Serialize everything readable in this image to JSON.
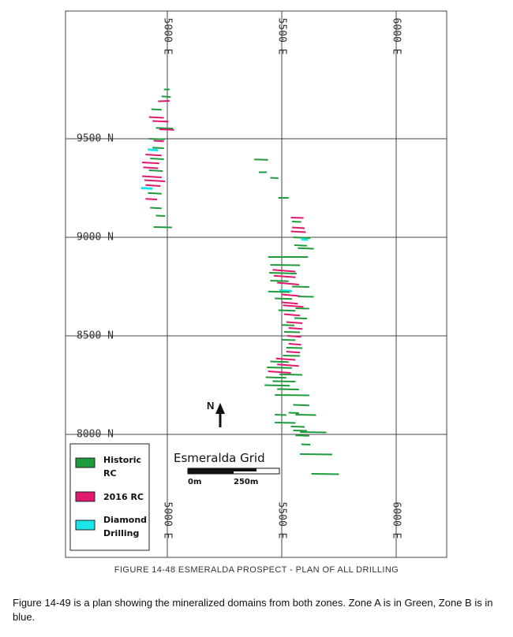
{
  "map": {
    "grid": {
      "eastings": [
        {
          "value": 5000,
          "label": "5000 E"
        },
        {
          "value": 5500,
          "label": "5500 E"
        },
        {
          "value": 6000,
          "label": "6000 E"
        }
      ],
      "northings": [
        {
          "value": 9500,
          "label": "9500 N"
        },
        {
          "value": 9000,
          "label": "9000 N"
        },
        {
          "value": 8500,
          "label": "8500 N"
        },
        {
          "value": 8000,
          "label": "8000 N"
        }
      ]
    },
    "grid_title": "Esmeralda Grid",
    "scale_bar": {
      "start_label": "0m",
      "end_label": "250m",
      "length_m": 250
    },
    "north_arrow": {
      "label": "N"
    },
    "legend": [
      {
        "key": "historic",
        "label_line1": "Historic",
        "label_line2": "RC",
        "color": "#1e9b3a"
      },
      {
        "key": "rc2016",
        "label_line1": "2016 RC",
        "label_line2": "",
        "color": "#e0186e"
      },
      {
        "key": "diamond",
        "label_line1": "Diamond",
        "label_line2": "Drilling",
        "color": "#18e6ea"
      }
    ],
    "colors": {
      "historic": "#1e9b3a",
      "rc2016": "#e0186e",
      "diamond": "#18e6ea",
      "grid_line": "#444444"
    },
    "drill_traces": [
      {
        "type": "historic",
        "e1": 4985,
        "n1": 9750,
        "e2": 5010,
        "n2": 9750
      },
      {
        "type": "historic",
        "e1": 4975,
        "n1": 9715,
        "e2": 5015,
        "n2": 9712
      },
      {
        "type": "rc2016",
        "e1": 4960,
        "n1": 9690,
        "e2": 5010,
        "n2": 9692
      },
      {
        "type": "historic",
        "e1": 4930,
        "n1": 9650,
        "e2": 4975,
        "n2": 9647
      },
      {
        "type": "rc2016",
        "e1": 4920,
        "n1": 9610,
        "e2": 4985,
        "n2": 9606
      },
      {
        "type": "rc2016",
        "e1": 4935,
        "n1": 9590,
        "e2": 5005,
        "n2": 9587
      },
      {
        "type": "historic",
        "e1": 4950,
        "n1": 9555,
        "e2": 5025,
        "n2": 9552
      },
      {
        "type": "rc2016",
        "e1": 4965,
        "n1": 9548,
        "e2": 5030,
        "n2": 9545
      },
      {
        "type": "historic",
        "e1": 4920,
        "n1": 9500,
        "e2": 4990,
        "n2": 9497
      },
      {
        "type": "rc2016",
        "e1": 4940,
        "n1": 9490,
        "e2": 4985,
        "n2": 9487
      },
      {
        "type": "historic",
        "e1": 4935,
        "n1": 9455,
        "e2": 4985,
        "n2": 9452
      },
      {
        "type": "diamond",
        "e1": 4915,
        "n1": 9445,
        "e2": 4960,
        "n2": 9442
      },
      {
        "type": "rc2016",
        "e1": 4905,
        "n1": 9420,
        "e2": 4975,
        "n2": 9415
      },
      {
        "type": "historic",
        "e1": 4925,
        "n1": 9400,
        "e2": 4985,
        "n2": 9396
      },
      {
        "type": "rc2016",
        "e1": 4890,
        "n1": 9380,
        "e2": 4965,
        "n2": 9375
      },
      {
        "type": "rc2016",
        "e1": 4895,
        "n1": 9355,
        "e2": 4960,
        "n2": 9350
      },
      {
        "type": "historic",
        "e1": 4920,
        "n1": 9340,
        "e2": 4980,
        "n2": 9336
      },
      {
        "type": "rc2016",
        "e1": 4890,
        "n1": 9310,
        "e2": 4975,
        "n2": 9304
      },
      {
        "type": "rc2016",
        "e1": 4900,
        "n1": 9290,
        "e2": 4990,
        "n2": 9284
      },
      {
        "type": "diamond",
        "e1": 4885,
        "n1": 9250,
        "e2": 4935,
        "n2": 9247
      },
      {
        "type": "rc2016",
        "e1": 4905,
        "n1": 9265,
        "e2": 4970,
        "n2": 9260
      },
      {
        "type": "historic",
        "e1": 4915,
        "n1": 9225,
        "e2": 4975,
        "n2": 9221
      },
      {
        "type": "rc2016",
        "e1": 4905,
        "n1": 9195,
        "e2": 4955,
        "n2": 9192
      },
      {
        "type": "historic",
        "e1": 4925,
        "n1": 9150,
        "e2": 4975,
        "n2": 9147
      },
      {
        "type": "historic",
        "e1": 4950,
        "n1": 9110,
        "e2": 4990,
        "n2": 9108
      },
      {
        "type": "historic",
        "e1": 4940,
        "n1": 9052,
        "e2": 5020,
        "n2": 9050
      },
      {
        "type": "historic",
        "e1": 5380,
        "n1": 9395,
        "e2": 5440,
        "n2": 9393
      },
      {
        "type": "historic",
        "e1": 5400,
        "n1": 9330,
        "e2": 5435,
        "n2": 9330
      },
      {
        "type": "historic",
        "e1": 5450,
        "n1": 9302,
        "e2": 5485,
        "n2": 9300
      },
      {
        "type": "historic",
        "e1": 5485,
        "n1": 9200,
        "e2": 5530,
        "n2": 9200
      },
      {
        "type": "rc2016",
        "e1": 5540,
        "n1": 9100,
        "e2": 5595,
        "n2": 9098
      },
      {
        "type": "historic",
        "e1": 5545,
        "n1": 9080,
        "e2": 5585,
        "n2": 9078
      },
      {
        "type": "rc2016",
        "e1": 5545,
        "n1": 9050,
        "e2": 5600,
        "n2": 9046
      },
      {
        "type": "rc2016",
        "e1": 5540,
        "n1": 9030,
        "e2": 5605,
        "n2": 9026
      },
      {
        "type": "historic",
        "e1": 5550,
        "n1": 9000,
        "e2": 5625,
        "n2": 8996
      },
      {
        "type": "diamond",
        "e1": 5585,
        "n1": 8990,
        "e2": 5615,
        "n2": 8988
      },
      {
        "type": "historic",
        "e1": 5555,
        "n1": 8960,
        "e2": 5610,
        "n2": 8957
      },
      {
        "type": "historic",
        "e1": 5570,
        "n1": 8945,
        "e2": 5640,
        "n2": 8942
      },
      {
        "type": "historic",
        "e1": 5440,
        "n1": 8900,
        "e2": 5615,
        "n2": 8900
      },
      {
        "type": "historic",
        "e1": 5450,
        "n1": 8860,
        "e2": 5580,
        "n2": 8858
      },
      {
        "type": "rc2016",
        "e1": 5460,
        "n1": 8835,
        "e2": 5560,
        "n2": 8826
      },
      {
        "type": "historic",
        "e1": 5445,
        "n1": 8820,
        "e2": 5565,
        "n2": 8816
      },
      {
        "type": "rc2016",
        "e1": 5465,
        "n1": 8805,
        "e2": 5560,
        "n2": 8797
      },
      {
        "type": "historic",
        "e1": 5450,
        "n1": 8780,
        "e2": 5530,
        "n2": 8777
      },
      {
        "type": "rc2016",
        "e1": 5480,
        "n1": 8770,
        "e2": 5575,
        "n2": 8760
      },
      {
        "type": "historic",
        "e1": 5545,
        "n1": 8750,
        "e2": 5620,
        "n2": 8748
      },
      {
        "type": "diamond",
        "e1": 5490,
        "n1": 8730,
        "e2": 5545,
        "n2": 8727
      },
      {
        "type": "historic",
        "e1": 5440,
        "n1": 8725,
        "e2": 5535,
        "n2": 8722
      },
      {
        "type": "rc2016",
        "e1": 5500,
        "n1": 8710,
        "e2": 5580,
        "n2": 8702
      },
      {
        "type": "historic",
        "e1": 5570,
        "n1": 8700,
        "e2": 5640,
        "n2": 8698
      },
      {
        "type": "historic",
        "e1": 5470,
        "n1": 8690,
        "e2": 5545,
        "n2": 8687
      },
      {
        "type": "rc2016",
        "e1": 5500,
        "n1": 8670,
        "e2": 5570,
        "n2": 8663
      },
      {
        "type": "rc2016",
        "e1": 5505,
        "n1": 8655,
        "e2": 5595,
        "n2": 8647
      },
      {
        "type": "historic",
        "e1": 5560,
        "n1": 8640,
        "e2": 5620,
        "n2": 8638
      },
      {
        "type": "historic",
        "e1": 5485,
        "n1": 8630,
        "e2": 5560,
        "n2": 8627
      },
      {
        "type": "rc2016",
        "e1": 5510,
        "n1": 8610,
        "e2": 5580,
        "n2": 8603
      },
      {
        "type": "historic",
        "e1": 5555,
        "n1": 8590,
        "e2": 5610,
        "n2": 8588
      },
      {
        "type": "rc2016",
        "e1": 5520,
        "n1": 8570,
        "e2": 5590,
        "n2": 8564
      },
      {
        "type": "historic",
        "e1": 5500,
        "n1": 8555,
        "e2": 5555,
        "n2": 8553
      },
      {
        "type": "rc2016",
        "e1": 5530,
        "n1": 8540,
        "e2": 5590,
        "n2": 8535
      },
      {
        "type": "historic",
        "e1": 5510,
        "n1": 8520,
        "e2": 5580,
        "n2": 8518
      },
      {
        "type": "rc2016",
        "e1": 5525,
        "n1": 8500,
        "e2": 5585,
        "n2": 8495
      },
      {
        "type": "historic",
        "e1": 5500,
        "n1": 8480,
        "e2": 5560,
        "n2": 8478
      },
      {
        "type": "rc2016",
        "e1": 5530,
        "n1": 8460,
        "e2": 5585,
        "n2": 8455
      },
      {
        "type": "historic",
        "e1": 5520,
        "n1": 8440,
        "e2": 5590,
        "n2": 8438
      },
      {
        "type": "rc2016",
        "e1": 5520,
        "n1": 8420,
        "e2": 5580,
        "n2": 8415
      },
      {
        "type": "historic",
        "e1": 5505,
        "n1": 8400,
        "e2": 5580,
        "n2": 8398
      },
      {
        "type": "rc2016",
        "e1": 5475,
        "n1": 8385,
        "e2": 5560,
        "n2": 8378
      },
      {
        "type": "historic",
        "e1": 5450,
        "n1": 8370,
        "e2": 5530,
        "n2": 8367
      },
      {
        "type": "rc2016",
        "e1": 5480,
        "n1": 8355,
        "e2": 5575,
        "n2": 8347
      },
      {
        "type": "historic",
        "e1": 5435,
        "n1": 8340,
        "e2": 5545,
        "n2": 8337
      },
      {
        "type": "rc2016",
        "e1": 5440,
        "n1": 8320,
        "e2": 5540,
        "n2": 8312
      },
      {
        "type": "historic",
        "e1": 5490,
        "n1": 8305,
        "e2": 5590,
        "n2": 8302
      },
      {
        "type": "historic",
        "e1": 5430,
        "n1": 8290,
        "e2": 5520,
        "n2": 8287
      },
      {
        "type": "historic",
        "e1": 5460,
        "n1": 8270,
        "e2": 5560,
        "n2": 8268
      },
      {
        "type": "historic",
        "e1": 5425,
        "n1": 8250,
        "e2": 5535,
        "n2": 8247
      },
      {
        "type": "historic",
        "e1": 5480,
        "n1": 8230,
        "e2": 5575,
        "n2": 8228
      },
      {
        "type": "historic",
        "e1": 5470,
        "n1": 8200,
        "e2": 5620,
        "n2": 8198
      },
      {
        "type": "historic",
        "e1": 5550,
        "n1": 8150,
        "e2": 5620,
        "n2": 8147
      },
      {
        "type": "historic",
        "e1": 5530,
        "n1": 8110,
        "e2": 5575,
        "n2": 8108
      },
      {
        "type": "historic",
        "e1": 5470,
        "n1": 8100,
        "e2": 5520,
        "n2": 8098
      },
      {
        "type": "historic",
        "e1": 5560,
        "n1": 8100,
        "e2": 5650,
        "n2": 8098
      },
      {
        "type": "historic",
        "e1": 5470,
        "n1": 8060,
        "e2": 5560,
        "n2": 8058
      },
      {
        "type": "historic",
        "e1": 5540,
        "n1": 8040,
        "e2": 5600,
        "n2": 8038
      },
      {
        "type": "historic",
        "e1": 5550,
        "n1": 8020,
        "e2": 5610,
        "n2": 8018
      },
      {
        "type": "historic",
        "e1": 5580,
        "n1": 8012,
        "e2": 5695,
        "n2": 8010
      },
      {
        "type": "historic",
        "e1": 5560,
        "n1": 7995,
        "e2": 5620,
        "n2": 7993
      },
      {
        "type": "historic",
        "e1": 5585,
        "n1": 7950,
        "e2": 5625,
        "n2": 7948
      },
      {
        "type": "historic",
        "e1": 5580,
        "n1": 7900,
        "e2": 5720,
        "n2": 7898
      },
      {
        "type": "historic",
        "e1": 5630,
        "n1": 7800,
        "e2": 5750,
        "n2": 7798
      }
    ]
  },
  "caption": "FIGURE 14-48 ESMERALDA PROSPECT - PLAN OF ALL DRILLING",
  "body_text": "Figure 14-49 is a plan showing the mineralized domains from both zones. Zone A is in Green, Zone B is in blue."
}
